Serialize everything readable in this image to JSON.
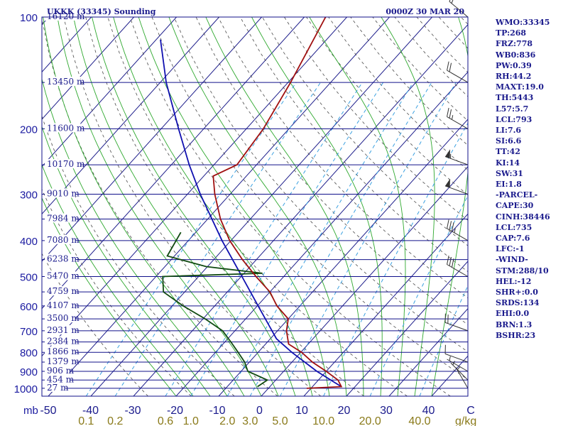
{
  "header": {
    "station": "UKKK (33345) Sounding",
    "time": "0000Z 30 MAR 20"
  },
  "indices": [
    "WMO:33345",
    "TP:268",
    "FRZ:778",
    "WB0:836",
    "PW:0.39",
    "RH:44.2",
    "MAXT:19.0",
    "TH:5443",
    "L57:5.7",
    "LCL:793",
    "LI:7.6",
    "SI:6.6",
    "TT:42",
    "KI:14",
    "SW:31",
    "EI:1.8",
    "-PARCEL-",
    "CAPE:30",
    "CINH:38446",
    "LCL:735",
    "CAP:7.6",
    "LFC:-1",
    "-WIND-",
    "STM:288/10",
    "HEL:-12",
    "SHR+:0.0",
    "SRDS:134",
    "EHI:0.0",
    "BRN:1.3",
    "BSHR:23"
  ],
  "colors": {
    "isobar": "#10108a",
    "isotherm": "#1f1f8c",
    "dry_adiabat": "#4a4a4a",
    "moist_adiabat": "#2ea82e",
    "mixing_ratio": "#3aa0e0",
    "temperature": "#a01010",
    "dewpoint": "#104a10",
    "parcel": "#1010b0",
    "wind": "#333333"
  },
  "chart_data": {
    "type": "skew-t",
    "pressure_levels": [
      {
        "p": 100,
        "label": "100",
        "height": "16120 m"
      },
      {
        "p": 150,
        "label": "",
        "height": "13450 m"
      },
      {
        "p": 200,
        "label": "200",
        "height": "11600 m"
      },
      {
        "p": 250,
        "label": "",
        "height": "10170 m"
      },
      {
        "p": 300,
        "label": "300",
        "height": "9010 m"
      },
      {
        "p": 350,
        "label": "",
        "height": "7984 m"
      },
      {
        "p": 400,
        "label": "400",
        "height": "7080 m"
      },
      {
        "p": 450,
        "label": "",
        "height": "6238 m"
      },
      {
        "p": 500,
        "label": "500",
        "height": "5470 m"
      },
      {
        "p": 550,
        "label": "",
        "height": "4759 m"
      },
      {
        "p": 600,
        "label": "600",
        "height": "4107 m"
      },
      {
        "p": 650,
        "label": "",
        "height": "3500 m"
      },
      {
        "p": 700,
        "label": "700",
        "height": "2931 m"
      },
      {
        "p": 750,
        "label": "",
        "height": "2384 m"
      },
      {
        "p": 800,
        "label": "800",
        "height": "1866 m"
      },
      {
        "p": 850,
        "label": "",
        "height": "1379 m"
      },
      {
        "p": 900,
        "label": "900",
        "height": "906 m"
      },
      {
        "p": 950,
        "label": "",
        "height": "454 m"
      },
      {
        "p": 1000,
        "label": "1000",
        "height": "27 m"
      }
    ],
    "pressure_unit": "mb",
    "temperature_ticks": [
      "-50",
      "-40",
      "-30",
      "-20",
      "-10",
      "0",
      "10",
      "20",
      "30",
      "40",
      "C"
    ],
    "mixing_ratio_ticks": [
      {
        "w": 0.1,
        "label": "0.1"
      },
      {
        "w": 0.2,
        "label": "0.2"
      },
      {
        "w": 0.6,
        "label": "0.6"
      },
      {
        "w": 1.0,
        "label": "1.0"
      },
      {
        "w": 2.0,
        "label": "2.0"
      },
      {
        "w": 3.0,
        "label": "3.0"
      },
      {
        "w": 5.0,
        "label": "5.0"
      },
      {
        "w": 10.0,
        "label": "10.0"
      },
      {
        "w": 20.0,
        "label": "20.0"
      },
      {
        "w": 40.0,
        "label": "40.0"
      }
    ],
    "mixing_ratio_unit": "g/kg",
    "temperature": [
      {
        "p": 1000,
        "t": 9.0
      },
      {
        "p": 990,
        "t": 16.8
      },
      {
        "p": 950,
        "t": 14.6
      },
      {
        "p": 900,
        "t": 10.0
      },
      {
        "p": 850,
        "t": 4.8
      },
      {
        "p": 800,
        "t": 0.2
      },
      {
        "p": 760,
        "t": -4.6
      },
      {
        "p": 700,
        "t": -7.9
      },
      {
        "p": 650,
        "t": -10.0
      },
      {
        "p": 600,
        "t": -15.4
      },
      {
        "p": 550,
        "t": -20.0
      },
      {
        "p": 500,
        "t": -26.5
      },
      {
        "p": 450,
        "t": -33.3
      },
      {
        "p": 400,
        "t": -40.3
      },
      {
        "p": 350,
        "t": -47.0
      },
      {
        "p": 300,
        "t": -53.6
      },
      {
        "p": 268,
        "t": -57.8
      },
      {
        "p": 250,
        "t": -54.6
      },
      {
        "p": 200,
        "t": -56.0
      },
      {
        "p": 150,
        "t": -59.4
      },
      {
        "p": 100,
        "t": -65.0
      }
    ],
    "dewpoint": [
      {
        "p": 990,
        "t": -2.9
      },
      {
        "p": 950,
        "t": -2.0
      },
      {
        "p": 900,
        "t": -8.4
      },
      {
        "p": 850,
        "t": -11.1
      },
      {
        "p": 800,
        "t": -14.7
      },
      {
        "p": 750,
        "t": -18.6
      },
      {
        "p": 700,
        "t": -22.9
      },
      {
        "p": 650,
        "t": -29.5
      },
      {
        "p": 600,
        "t": -37.4
      },
      {
        "p": 550,
        "t": -45.0
      },
      {
        "p": 500,
        "t": -48.4
      },
      {
        "p": 490,
        "t": -25.7
      },
      {
        "p": 470,
        "t": -40.3
      },
      {
        "p": 440,
        "t": -51.7
      },
      {
        "p": 380,
        "t": -53.5
      }
    ],
    "parcel": [
      {
        "p": 990,
        "t": 16.8
      },
      {
        "p": 900,
        "t": 7.8
      },
      {
        "p": 800,
        "t": -2.1
      },
      {
        "p": 735,
        "t": -8.6
      },
      {
        "p": 700,
        "t": -11.3
      },
      {
        "p": 600,
        "t": -19.8
      },
      {
        "p": 500,
        "t": -29.8
      },
      {
        "p": 400,
        "t": -42.1
      },
      {
        "p": 300,
        "t": -57.0
      },
      {
        "p": 250,
        "t": -65.8
      },
      {
        "p": 200,
        "t": -75.9
      },
      {
        "p": 150,
        "t": -88.6
      },
      {
        "p": 115,
        "t": -99.0
      }
    ],
    "wind_barbs": [
      {
        "p": 1000,
        "dir": 330,
        "spd": 5
      },
      {
        "p": 950,
        "dir": 315,
        "spd": 5
      },
      {
        "p": 900,
        "dir": 300,
        "spd": 5
      },
      {
        "p": 850,
        "dir": 290,
        "spd": 10
      },
      {
        "p": 700,
        "dir": 290,
        "spd": 20
      },
      {
        "p": 500,
        "dir": 300,
        "spd": 30
      },
      {
        "p": 400,
        "dir": 300,
        "spd": 35
      },
      {
        "p": 300,
        "dir": 290,
        "spd": 50
      },
      {
        "p": 250,
        "dir": 290,
        "spd": 55
      },
      {
        "p": 200,
        "dir": 300,
        "spd": 25
      },
      {
        "p": 150,
        "dir": 300,
        "spd": 20
      },
      {
        "p": 100,
        "dir": 310,
        "spd": 20
      }
    ]
  }
}
